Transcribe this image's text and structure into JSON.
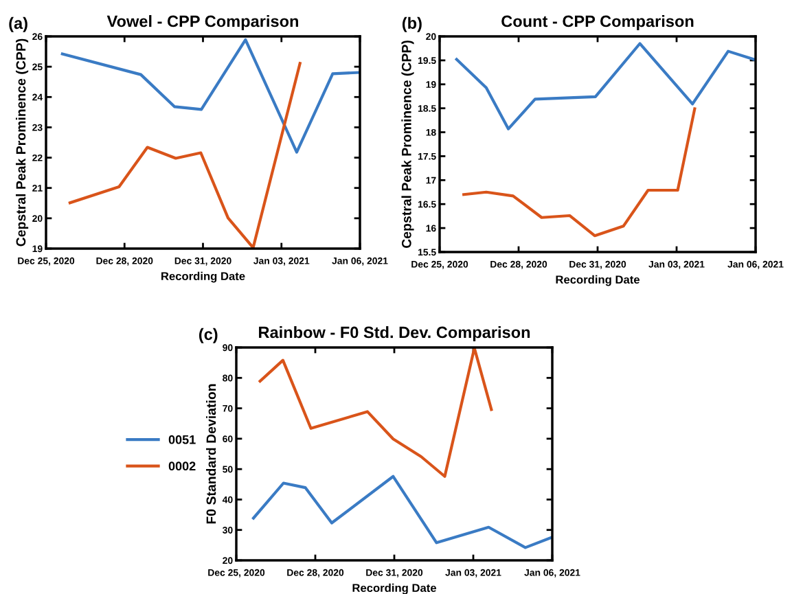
{
  "chart_data": [
    {
      "type": "line",
      "title": "Vowel - CPP Comparison",
      "xlabel": "Recording Date",
      "ylabel": "Cepstral Peak Prominence (CPP)",
      "annotations": [
        "(a)"
      ],
      "xlim": [
        "2020-12-25",
        "2021-01-06"
      ],
      "xticks": [
        {
          "value": "2020-12-25",
          "label": "Dec 25, 2020"
        },
        {
          "value": "2020-12-28",
          "label": "Dec 28, 2020"
        },
        {
          "value": "2020-12-31",
          "label": "Dec 31, 2020"
        },
        {
          "value": "2021-01-03",
          "label": "Jan 03, 2021"
        },
        {
          "value": "2021-01-06",
          "label": "Jan 06, 2021"
        }
      ],
      "ylim": [
        19,
        26
      ],
      "yticks": [
        19,
        20,
        21,
        22,
        23,
        24,
        25,
        26
      ],
      "grid": false,
      "legend": false,
      "marker": "none",
      "line_style": "solid",
      "series": [
        {
          "color": "#3a7bc4",
          "x": [
            "2020-12-25T15:00",
            "2020-12-28T15:00",
            "2020-12-29T22:00",
            "2020-12-30T22:30",
            "2021-01-01T15:00",
            "2021-01-03T14:00",
            "2021-01-04T23:00",
            "2021-01-06T00:00"
          ],
          "values": [
            25.42,
            24.74,
            23.68,
            23.59,
            25.89,
            22.18,
            24.77,
            24.81
          ]
        },
        {
          "color": "#d9541a",
          "x": [
            "2020-12-25T22:00",
            "2020-12-27T19:00",
            "2020-12-28T21:00",
            "2020-12-29T23:00",
            "2020-12-30T22:00",
            "2020-12-31T23:00",
            "2021-01-01T22:00",
            "2021-01-03T17:00"
          ],
          "values": [
            20.51,
            21.04,
            22.34,
            21.98,
            22.16,
            20.01,
            19.03,
            25.11
          ]
        }
      ]
    },
    {
      "type": "line",
      "title": "Count - CPP Comparison",
      "xlabel": "Recording Date",
      "ylabel": "Cepstral Peak Prominence (CPP)",
      "annotations": [
        "(b)"
      ],
      "xlim": [
        "2020-12-25",
        "2021-01-06"
      ],
      "xticks": [
        {
          "value": "2020-12-25",
          "label": "Dec 25, 2020"
        },
        {
          "value": "2020-12-28",
          "label": "Dec 28, 2020"
        },
        {
          "value": "2020-12-31",
          "label": "Dec 31, 2020"
        },
        {
          "value": "2021-01-03",
          "label": "Jan 03, 2021"
        },
        {
          "value": "2021-01-06",
          "label": "Jan 06, 2021"
        }
      ],
      "ylim": [
        15.5,
        20
      ],
      "yticks": [
        15.5,
        16,
        16.5,
        17,
        17.5,
        18,
        18.5,
        19,
        19.5,
        20
      ],
      "grid": false,
      "legend": false,
      "marker": "none",
      "line_style": "solid",
      "series": [
        {
          "color": "#3a7bc4",
          "x": [
            "2020-12-25T15:30",
            "2020-12-26T18:30",
            "2020-12-27T14:40",
            "2020-12-28T15:00",
            "2020-12-30T22:00",
            "2021-01-01T14:30",
            "2021-01-03T14:30",
            "2021-01-04T23:00",
            "2021-01-06T00:00"
          ],
          "values": [
            19.52,
            18.93,
            18.07,
            18.69,
            18.74,
            19.85,
            18.59,
            19.69,
            19.51
          ]
        },
        {
          "color": "#d9541a",
          "x": [
            "2020-12-25T22:00",
            "2020-12-26T18:30",
            "2020-12-27T19:00",
            "2020-12-28T21:00",
            "2020-12-29T22:30",
            "2020-12-30T21:30",
            "2020-12-31T23:30",
            "2021-01-01T22:00",
            "2021-01-03T01:00",
            "2021-01-03T16:30"
          ],
          "values": [
            16.7,
            16.75,
            16.67,
            16.22,
            16.26,
            15.84,
            16.04,
            16.79,
            16.79,
            18.49
          ]
        }
      ]
    },
    {
      "type": "line",
      "title": "Rainbow - F0 Std. Dev. Comparison",
      "xlabel": "Recording Date",
      "ylabel": "F0 Standard Deviation",
      "annotations": [
        "(c)"
      ],
      "xlim": [
        "2020-12-25",
        "2021-01-06"
      ],
      "xticks": [
        {
          "value": "2020-12-25",
          "label": "Dec 25, 2020"
        },
        {
          "value": "2020-12-28",
          "label": "Dec 28, 2020"
        },
        {
          "value": "2020-12-31",
          "label": "Dec 31, 2020"
        },
        {
          "value": "2021-01-03",
          "label": "Jan 03, 2021"
        },
        {
          "value": "2021-01-06",
          "label": "Jan 06, 2021"
        }
      ],
      "ylim": [
        20,
        90
      ],
      "yticks": [
        20,
        30,
        40,
        50,
        60,
        70,
        80,
        90
      ],
      "grid": false,
      "legend": "left",
      "marker": "none",
      "line_style": "solid",
      "series": [
        {
          "name": "0051",
          "color": "#3a7bc4",
          "x": [
            "2020-12-25T15:40",
            "2020-12-26T19:00",
            "2020-12-27T15:00",
            "2020-12-28T15:00",
            "2020-12-30T23:00",
            "2021-01-01T14:30",
            "2021-01-03T14:00",
            "2021-01-04T23:30",
            "2021-01-06T00:00"
          ],
          "values": [
            33.9,
            45.4,
            43.9,
            32.3,
            47.6,
            25.8,
            30.9,
            24.2,
            27.6
          ]
        },
        {
          "name": "0002",
          "color": "#d9541a",
          "x": [
            "2020-12-25T21:40",
            "2020-12-26T18:30",
            "2020-12-27T20:00",
            "2020-12-29T23:30",
            "2020-12-30T23:00",
            "2021-01-01T00:30",
            "2021-01-01T22:00",
            "2021-01-03T01:00",
            "2021-01-03T16:30"
          ],
          "values": [
            78.9,
            85.8,
            63.4,
            68.9,
            59.9,
            54.1,
            47.6,
            89.8,
            69.6
          ]
        }
      ]
    }
  ]
}
